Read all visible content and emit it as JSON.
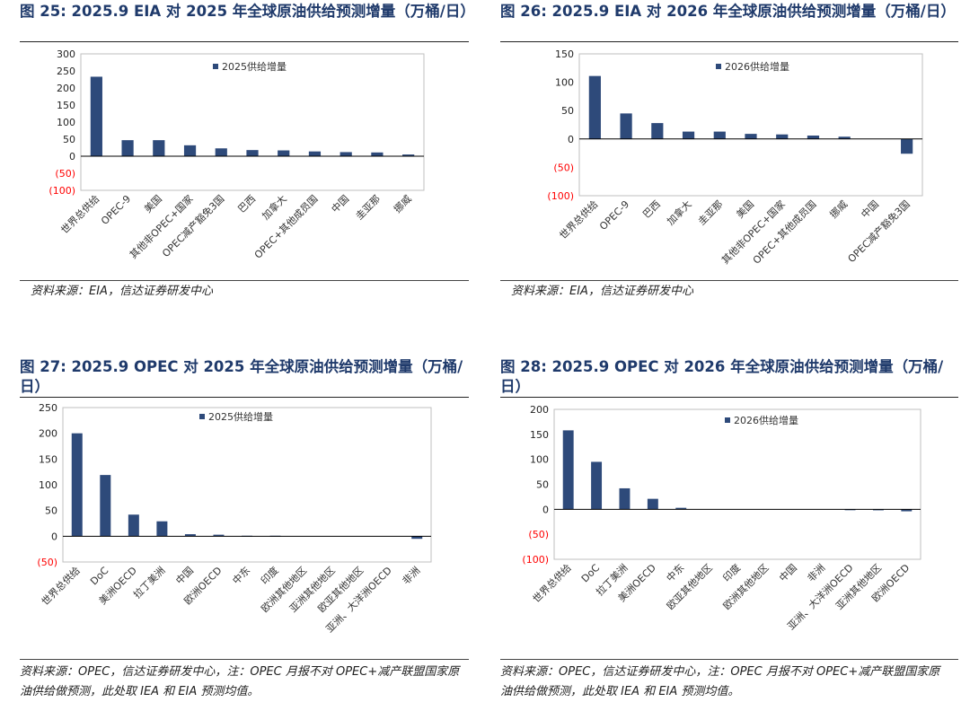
{
  "charts": [
    {
      "fig_title": "图 25:  2025.9 EIA 对 2025 年全球原油供给预测增量（万桶/日）",
      "source": "资料来源：EIA，信达证券研发中心",
      "chart_data": {
        "type": "bar",
        "categories": [
          "世界总供给",
          "OPEC-9",
          "美国",
          "其他非OPEC+国家",
          "OPEC减产豁免3国",
          "巴西",
          "加拿大",
          "OPEC+其他成员国",
          "中国",
          "圭亚那",
          "挪威"
        ],
        "series": [
          {
            "name": "2025供给增量",
            "values": [
              233,
              47,
              47,
              32,
              23,
              18,
              17,
              14,
              12,
              11,
              5
            ]
          }
        ],
        "ylim": [
          -100,
          300
        ],
        "yticks": [
          "300",
          "250",
          "200",
          "150",
          "100",
          "50",
          "0",
          "(50)",
          "(100)"
        ],
        "negative_tick_color": "#ff0000",
        "bar_color": "#2e4a7a",
        "legend_position": "top-center",
        "grid": false
      }
    },
    {
      "fig_title": "图 26:  2025.9 EIA 对 2026 年全球原油供给预测增量（万桶/日）",
      "source": "资料来源：EIA，信达证券研发中心",
      "chart_data": {
        "type": "bar",
        "categories": [
          "世界总供给",
          "OPEC-9",
          "巴西",
          "加拿大",
          "圭亚那",
          "美国",
          "其他非OPEC+国家",
          "OPEC+其他成员国",
          "挪威",
          "中国",
          "OPEC减产豁免3国"
        ],
        "series": [
          {
            "name": "2026供给增量",
            "values": [
              111,
              45,
              28,
              13,
              13,
              9,
              8,
              6,
              4,
              0,
              -26
            ]
          }
        ],
        "ylim": [
          -100,
          150
        ],
        "yticks": [
          "150",
          "100",
          "50",
          "0",
          "(50)",
          "(100)"
        ],
        "negative_tick_color": "#ff0000",
        "bar_color": "#2e4a7a",
        "legend_position": "top-center",
        "grid": false
      }
    },
    {
      "fig_title": "图 27:  2025.9 OPEC 对 2025 年全球原油供给预测增量（万桶/日）",
      "source": "资料来源：OPEC，信达证券研发中心，注：OPEC 月报不对 OPEC+减产联盟国家原油供给做预测，此处取 IEA 和 EIA 预测均值。",
      "chart_data": {
        "type": "bar",
        "categories": [
          "世界总供给",
          "DoC",
          "美洲OECD",
          "拉丁美洲",
          "中国",
          "欧洲OECD",
          "中东",
          "印度",
          "欧洲其他地区",
          "亚洲其他地区",
          "欧亚其他地区",
          "亚洲、大洋洲OECD",
          "非洲"
        ],
        "series": [
          {
            "name": "2025供给增量",
            "values": [
              200,
              119,
              42,
              29,
              4,
              3,
              1,
              1,
              0,
              0,
              0,
              0,
              -5
            ]
          }
        ],
        "ylim": [
          -50,
          250
        ],
        "yticks": [
          "250",
          "200",
          "150",
          "100",
          "50",
          "0",
          "(50)"
        ],
        "negative_tick_color": "#ff0000",
        "bar_color": "#2e4a7a",
        "legend_position": "top-center",
        "grid": false
      }
    },
    {
      "fig_title": "图 28:  2025.9 OPEC 对 2026 年全球原油供给预测增量（万桶/日）",
      "source": "资料来源：OPEC，信达证券研发中心，注：OPEC 月报不对 OPEC+减产联盟国家原油供给做预测，此处取 IEA 和 EIA 预测均值。",
      "chart_data": {
        "type": "bar",
        "categories": [
          "世界总供给",
          "DoC",
          "拉丁美洲",
          "美洲OECD",
          "中东",
          "欧亚其他地区",
          "印度",
          "欧洲其他地区",
          "中国",
          "非洲",
          "亚洲、大洋洲OECD",
          "亚洲其他地区",
          "欧洲OECD"
        ],
        "series": [
          {
            "name": "2026供给增量",
            "values": [
              158,
              95,
              42,
              21,
              3,
              0,
              0,
              0,
              0,
              0,
              -1,
              -2,
              -4
            ]
          }
        ],
        "ylim": [
          -100,
          200
        ],
        "yticks": [
          "200",
          "150",
          "100",
          "50",
          "0",
          "(50)",
          "(100)"
        ],
        "negative_tick_color": "#ff0000",
        "bar_color": "#2e4a7a",
        "legend_position": "top-center",
        "grid": false
      }
    }
  ]
}
